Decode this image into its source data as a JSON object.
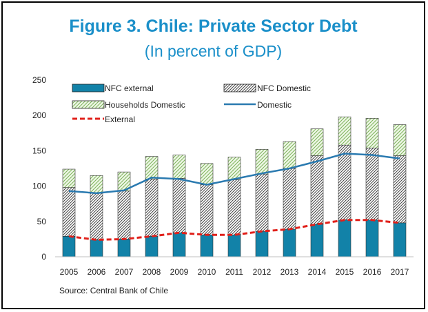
{
  "page": {
    "title": "Figure 3. Chile: Private Sector Debt",
    "subtitle": "(In percent of GDP)",
    "source": "Source: Central Bank of Chile",
    "title_color": "#1a8fc9"
  },
  "chart_data": {
    "type": "bar",
    "stacked": true,
    "categories": [
      "2005",
      "2006",
      "2007",
      "2008",
      "2009",
      "2010",
      "2011",
      "2012",
      "2013",
      "2014",
      "2015",
      "2016",
      "2017"
    ],
    "series": [
      {
        "name": "NFC external",
        "kind": "bar",
        "color": "#1282a8",
        "values": [
          29,
          24,
          25,
          29,
          34,
          31,
          31,
          36,
          39,
          46,
          52,
          52,
          48
        ]
      },
      {
        "name": "NFC Domestic",
        "kind": "bar",
        "hatch": "diagonal-dense",
        "color": "#555555",
        "values": [
          69,
          66,
          68,
          81,
          77,
          71,
          78,
          81,
          86,
          97,
          106,
          102,
          95
        ]
      },
      {
        "name": "Households Domestic",
        "kind": "bar",
        "hatch": "diagonal-light",
        "color": "#8fc46a",
        "values": [
          26,
          25,
          27,
          32,
          33,
          30,
          32,
          35,
          38,
          38,
          40,
          42,
          44
        ]
      },
      {
        "name": "Domestic",
        "kind": "line",
        "color": "#2a7ab0",
        "values": [
          93,
          90,
          94,
          112,
          110,
          102,
          110,
          118,
          125,
          135,
          146,
          144,
          139
        ]
      },
      {
        "name": "External",
        "kind": "line",
        "style": "dashed",
        "color": "#e0201a",
        "values": [
          29,
          24,
          25,
          29,
          34,
          31,
          31,
          36,
          39,
          46,
          52,
          52,
          48
        ]
      }
    ],
    "yticks": [
      0,
      50,
      100,
      150,
      200,
      250
    ],
    "ylim": [
      0,
      250
    ],
    "xlabel": "",
    "ylabel": "",
    "grid": false,
    "legend_position": "top-left"
  }
}
